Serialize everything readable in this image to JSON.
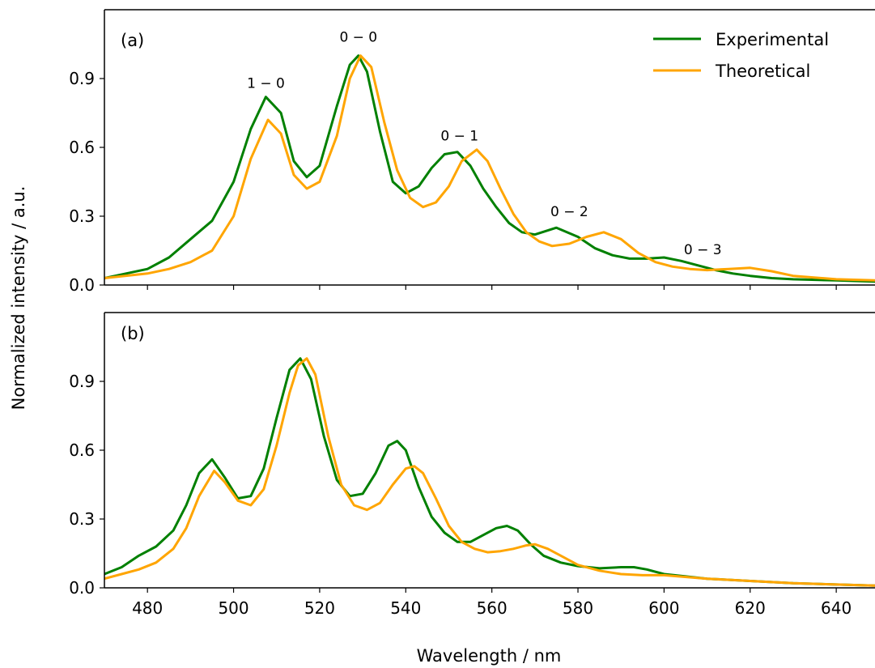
{
  "chart_data": [
    {
      "type": "line",
      "panel": "(a)",
      "xlim": [
        470,
        649
      ],
      "ylim": [
        0,
        1.2
      ],
      "yticks": [
        0.0,
        0.3,
        0.6,
        0.9
      ],
      "ytick_labels": [
        "0.0",
        "0.3",
        "0.6",
        "0.9"
      ],
      "show_xtick_labels": false,
      "legend": {
        "placement": "top-right",
        "entries": [
          "Experimental",
          "Theoretical"
        ]
      },
      "series": [
        {
          "name": "Experimental",
          "color": "#008000",
          "x": [
            470,
            480,
            485,
            490,
            495,
            500,
            504,
            507.5,
            511,
            514,
            517,
            520,
            524,
            527,
            529,
            531,
            534,
            537,
            540,
            543,
            546,
            549,
            552,
            555,
            558,
            561,
            564,
            567,
            570,
            575,
            580,
            584,
            588,
            592,
            596,
            600,
            604,
            608,
            612,
            616,
            620,
            625,
            630,
            640,
            649
          ],
          "y": [
            0.03,
            0.07,
            0.12,
            0.2,
            0.28,
            0.45,
            0.68,
            0.82,
            0.75,
            0.54,
            0.47,
            0.52,
            0.78,
            0.96,
            1.0,
            0.93,
            0.67,
            0.45,
            0.4,
            0.43,
            0.51,
            0.57,
            0.58,
            0.52,
            0.42,
            0.34,
            0.27,
            0.23,
            0.22,
            0.25,
            0.21,
            0.16,
            0.13,
            0.115,
            0.115,
            0.12,
            0.105,
            0.085,
            0.065,
            0.05,
            0.04,
            0.03,
            0.025,
            0.02,
            0.015
          ]
        },
        {
          "name": "Theoretical",
          "color": "#FFA500",
          "x": [
            470,
            480,
            485,
            490,
            495,
            500,
            504,
            508,
            511,
            514,
            517,
            520,
            524,
            527,
            529.5,
            532,
            535,
            538,
            541,
            544,
            547,
            550,
            553,
            556.5,
            559,
            562,
            565,
            568,
            571,
            574,
            578,
            582,
            586,
            590,
            594,
            598,
            602,
            606,
            610,
            615,
            620,
            625,
            630,
            640,
            649
          ],
          "y": [
            0.03,
            0.05,
            0.07,
            0.1,
            0.15,
            0.3,
            0.55,
            0.72,
            0.66,
            0.48,
            0.42,
            0.45,
            0.65,
            0.9,
            1.0,
            0.95,
            0.71,
            0.5,
            0.38,
            0.34,
            0.36,
            0.43,
            0.54,
            0.59,
            0.54,
            0.42,
            0.31,
            0.23,
            0.19,
            0.17,
            0.18,
            0.21,
            0.23,
            0.2,
            0.14,
            0.1,
            0.08,
            0.07,
            0.065,
            0.07,
            0.075,
            0.06,
            0.04,
            0.025,
            0.02
          ]
        }
      ],
      "annotations": [
        {
          "text": "1 − 0",
          "x": 507.5,
          "y": 0.86
        },
        {
          "text": "0 − 0",
          "x": 529,
          "y": 1.06
        },
        {
          "text": "0 − 1",
          "x": 552.5,
          "y": 0.63
        },
        {
          "text": "0 − 2",
          "x": 578,
          "y": 0.3
        },
        {
          "text": "0 − 3",
          "x": 609,
          "y": 0.135
        }
      ]
    },
    {
      "type": "line",
      "panel": "(b)",
      "xlim": [
        470,
        649
      ],
      "ylim": [
        0,
        1.2
      ],
      "yticks": [
        0.0,
        0.3,
        0.6,
        0.9
      ],
      "ytick_labels": [
        "0.0",
        "0.3",
        "0.6",
        "0.9"
      ],
      "xticks": [
        480,
        500,
        520,
        540,
        560,
        580,
        600,
        620,
        640
      ],
      "xtick_labels": [
        "480",
        "500",
        "520",
        "540",
        "560",
        "580",
        "600",
        "620",
        "640"
      ],
      "show_xtick_labels": true,
      "series": [
        {
          "name": "Experimental",
          "color": "#008000",
          "x": [
            470,
            474,
            478,
            482,
            486,
            489,
            492,
            495,
            498,
            501,
            504,
            507,
            510,
            513,
            515.5,
            518,
            521,
            524,
            527,
            530,
            533,
            536,
            538,
            540,
            543,
            546,
            549,
            552,
            555,
            558,
            561,
            563.5,
            566,
            569,
            572,
            576,
            580,
            585,
            590,
            593,
            596,
            600,
            610,
            620,
            630,
            649
          ],
          "y": [
            0.06,
            0.09,
            0.14,
            0.18,
            0.25,
            0.36,
            0.5,
            0.56,
            0.48,
            0.39,
            0.4,
            0.52,
            0.74,
            0.95,
            1.0,
            0.91,
            0.66,
            0.47,
            0.4,
            0.41,
            0.5,
            0.62,
            0.64,
            0.6,
            0.44,
            0.31,
            0.24,
            0.2,
            0.2,
            0.23,
            0.26,
            0.27,
            0.25,
            0.19,
            0.14,
            0.11,
            0.095,
            0.085,
            0.09,
            0.09,
            0.08,
            0.06,
            0.04,
            0.03,
            0.02,
            0.01
          ]
        },
        {
          "name": "Theoretical",
          "color": "#FFA500",
          "x": [
            470,
            474,
            478,
            482,
            486,
            489,
            492,
            495.5,
            498,
            501,
            504,
            507,
            510,
            513,
            515,
            517,
            519,
            522,
            525,
            528,
            531,
            534,
            537,
            540,
            542,
            544,
            547,
            550,
            553,
            556,
            559,
            562,
            565,
            568,
            570,
            573,
            576,
            580,
            585,
            590,
            595,
            600,
            610,
            620,
            630,
            649
          ],
          "y": [
            0.04,
            0.06,
            0.08,
            0.11,
            0.17,
            0.26,
            0.4,
            0.51,
            0.46,
            0.38,
            0.36,
            0.43,
            0.62,
            0.85,
            0.97,
            1.0,
            0.93,
            0.66,
            0.45,
            0.36,
            0.34,
            0.37,
            0.45,
            0.52,
            0.53,
            0.5,
            0.39,
            0.27,
            0.2,
            0.17,
            0.155,
            0.16,
            0.17,
            0.185,
            0.19,
            0.17,
            0.14,
            0.1,
            0.075,
            0.06,
            0.055,
            0.055,
            0.04,
            0.03,
            0.02,
            0.01
          ]
        }
      ],
      "annotations": []
    }
  ],
  "ylabel": "Normalized intensity / a.u.",
  "xlabel": "Wavelength / nm"
}
